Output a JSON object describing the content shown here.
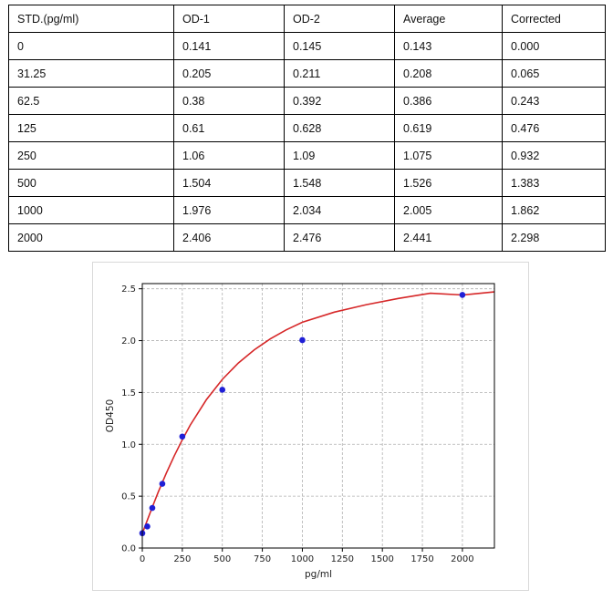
{
  "table": {
    "headers": [
      "STD.(pg/ml)",
      "OD-1",
      "OD-2",
      "Average",
      "Corrected"
    ],
    "rows": [
      [
        "0",
        "0.141",
        "0.145",
        "0.143",
        "0.000"
      ],
      [
        "31.25",
        "0.205",
        "0.211",
        "0.208",
        "0.065"
      ],
      [
        "62.5",
        "0.38",
        "0.392",
        "0.386",
        "0.243"
      ],
      [
        "125",
        "0.61",
        "0.628",
        "0.619",
        "0.476"
      ],
      [
        "250",
        "1.06",
        "1.09",
        "1.075",
        "0.932"
      ],
      [
        "500",
        "1.504",
        "1.548",
        "1.526",
        "1.383"
      ],
      [
        "1000",
        "1.976",
        "2.034",
        "2.005",
        "1.862"
      ],
      [
        "2000",
        "2.406",
        "2.476",
        "2.441",
        "2.298"
      ]
    ]
  },
  "chart_data": {
    "type": "scatter",
    "title": "",
    "xlabel": "pg/ml",
    "ylabel": "OD450",
    "xlim": [
      0,
      2200
    ],
    "ylim": [
      0,
      2.55
    ],
    "xticks": [
      "0",
      "250",
      "500",
      "750",
      "1000",
      "1250",
      "1500",
      "1750",
      "2000"
    ],
    "yticks": [
      "0.0",
      "0.5",
      "1.0",
      "1.5",
      "2.0",
      "2.5"
    ],
    "grid": true,
    "points": {
      "x": [
        0,
        31.25,
        62.5,
        125,
        250,
        500,
        1000,
        2000
      ],
      "y": [
        0.143,
        0.208,
        0.386,
        0.619,
        1.075,
        1.526,
        2.005,
        2.441
      ],
      "color": "#1f1fd6"
    },
    "fit_curve": {
      "color": "#d62728",
      "x": [
        0,
        25,
        50,
        75,
        100,
        150,
        200,
        250,
        300,
        400,
        500,
        600,
        700,
        800,
        900,
        1000,
        1200,
        1400,
        1600,
        1800,
        2000,
        2200
      ],
      "y": [
        0.14,
        0.243,
        0.345,
        0.444,
        0.54,
        0.722,
        0.89,
        1.045,
        1.186,
        1.43,
        1.626,
        1.784,
        1.912,
        2.017,
        2.104,
        2.177,
        2.275,
        2.347,
        2.407,
        2.457,
        2.44,
        2.47
      ]
    }
  }
}
